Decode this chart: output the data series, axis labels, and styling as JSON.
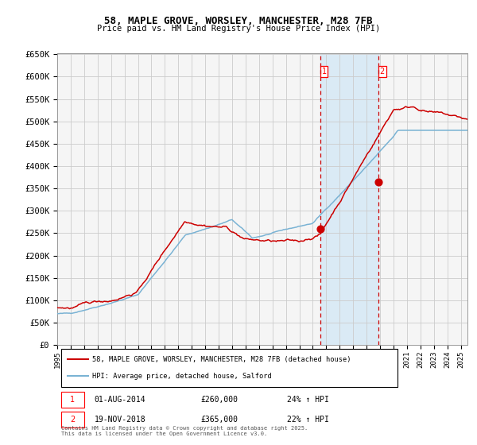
{
  "title_line1": "58, MAPLE GROVE, WORSLEY, MANCHESTER, M28 7FB",
  "title_line2": "Price paid vs. HM Land Registry's House Price Index (HPI)",
  "ylabel_ticks": [
    "£0",
    "£50K",
    "£100K",
    "£150K",
    "£200K",
    "£250K",
    "£300K",
    "£350K",
    "£400K",
    "£450K",
    "£500K",
    "£550K",
    "£600K",
    "£650K"
  ],
  "ytick_values": [
    0,
    50000,
    100000,
    150000,
    200000,
    250000,
    300000,
    350000,
    400000,
    450000,
    500000,
    550000,
    600000,
    650000
  ],
  "hpi_color": "#7ab3d4",
  "property_color": "#cc0000",
  "shade_color": "#daeaf5",
  "vline_color": "#cc0000",
  "grid_color": "#cccccc",
  "background_color": "#f5f5f5",
  "purchase1_date": 2014.58,
  "purchase1_price": 260000,
  "purchase2_date": 2018.89,
  "purchase2_price": 365000,
  "legend_property": "58, MAPLE GROVE, WORSLEY, MANCHESTER, M28 7FB (detached house)",
  "legend_hpi": "HPI: Average price, detached house, Salford",
  "annotation1": "01-AUG-2014",
  "annotation1_price": "£260,000",
  "annotation1_hpi": "24% ↑ HPI",
  "annotation2": "19-NOV-2018",
  "annotation2_price": "£365,000",
  "annotation2_hpi": "22% ↑ HPI",
  "footnote": "Contains HM Land Registry data © Crown copyright and database right 2025.\nThis data is licensed under the Open Government Licence v3.0.",
  "xmin": 1995.0,
  "xmax": 2025.5,
  "ymin": 0,
  "ymax": 650000
}
